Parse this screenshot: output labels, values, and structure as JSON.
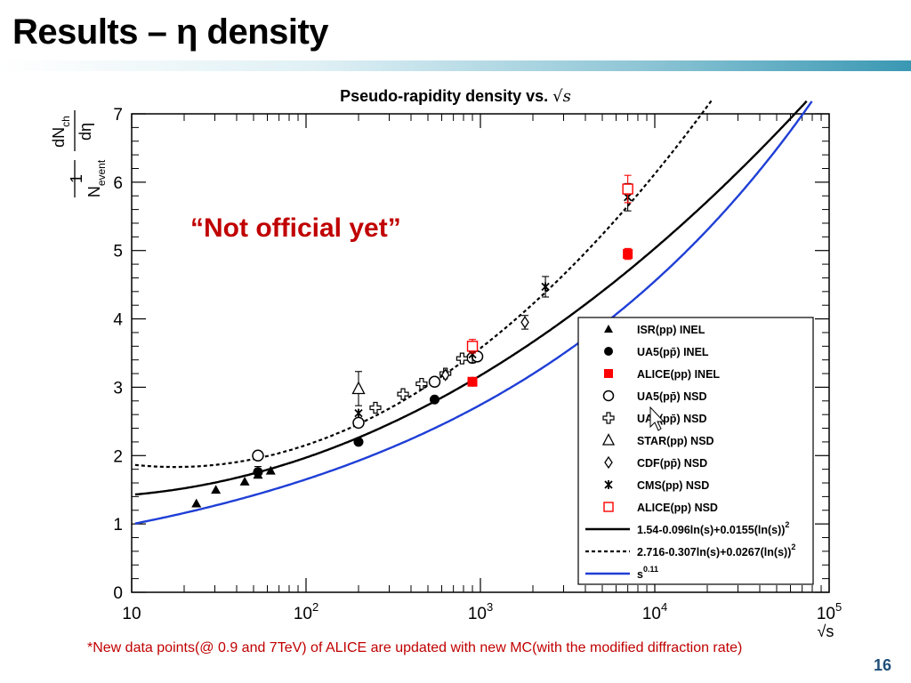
{
  "slide": {
    "title": "Results – η density",
    "stamp": "“Not official yet”",
    "footnote": "*New data points(@ 0.9 and 7TeV) of ALICE are updated with new MC(with the modified diffraction rate)",
    "page_number": "16"
  },
  "chart_data": {
    "type": "scatter",
    "title": "Pseudo-rapidity density vs.",
    "title_math": "√s",
    "x_scale": "log",
    "xlim": [
      10,
      100000
    ],
    "ylim": [
      0,
      7
    ],
    "xlabel": "√s",
    "ylabel_parts": {
      "num": "dN",
      "num_sub": "ch",
      "den_num": "dη",
      "one": "1",
      "den": "N",
      "den_sub": "event"
    },
    "x_ticks": [
      10,
      100,
      1000,
      10000,
      100000
    ],
    "x_tick_labels": [
      {
        "base": "10",
        "exp": ""
      },
      {
        "base": "10",
        "exp": "2"
      },
      {
        "base": "10",
        "exp": "3"
      },
      {
        "base": "10",
        "exp": "4"
      },
      {
        "base": "10",
        "exp": "5"
      }
    ],
    "y_ticks": [
      0,
      1,
      2,
      3,
      4,
      5,
      6,
      7
    ],
    "y_tick_labels": [
      "0",
      "1",
      "2",
      "3",
      "4",
      "5",
      "6",
      "7"
    ],
    "legend_position": "bottom-right",
    "series": [
      {
        "name": "ISR(pp) INEL",
        "marker": "triangle-filled",
        "color": "#000000",
        "points": [
          {
            "x": 23.5,
            "y": 1.3
          },
          {
            "x": 30.4,
            "y": 1.5
          },
          {
            "x": 44.5,
            "y": 1.62
          },
          {
            "x": 53,
            "y": 1.72
          },
          {
            "x": 62.7,
            "y": 1.78
          }
        ]
      },
      {
        "name": "UA5(pp̄) INEL",
        "marker": "circle-filled",
        "color": "#000000",
        "points": [
          {
            "x": 53,
            "y": 1.76,
            "err": 0.08
          },
          {
            "x": 200,
            "y": 2.2
          },
          {
            "x": 546,
            "y": 2.82
          },
          {
            "x": 900,
            "y": 3.08
          }
        ]
      },
      {
        "name": "ALICE(pp) INEL",
        "marker": "square-filled",
        "color": "#ff0000",
        "points": [
          {
            "x": 900,
            "y": 3.08
          },
          {
            "x": 7000,
            "y": 4.95,
            "err": 0.08
          }
        ]
      },
      {
        "name": "UA5(pp̄) NSD",
        "marker": "circle-open",
        "color": "#000000",
        "points": [
          {
            "x": 53,
            "y": 2.0
          },
          {
            "x": 200,
            "y": 2.48
          },
          {
            "x": 546,
            "y": 3.08
          },
          {
            "x": 900,
            "y": 3.43
          },
          {
            "x": 960,
            "y": 3.45
          }
        ]
      },
      {
        "name": "UA1(pp̄) NSD",
        "marker": "cross-open",
        "color": "#000000",
        "points": [
          {
            "x": 250,
            "y": 2.7
          },
          {
            "x": 360,
            "y": 2.9
          },
          {
            "x": 460,
            "y": 3.05
          },
          {
            "x": 630,
            "y": 3.2
          },
          {
            "x": 785,
            "y": 3.42
          }
        ]
      },
      {
        "name": "STAR(pp) NSD",
        "marker": "triangle-open",
        "color": "#000000",
        "points": [
          {
            "x": 200,
            "y": 2.98,
            "err": 0.25
          }
        ]
      },
      {
        "name": "CDF(pp̄) NSD",
        "marker": "diamond-open",
        "color": "#000000",
        "points": [
          {
            "x": 630,
            "y": 3.18
          },
          {
            "x": 1800,
            "y": 3.95,
            "err": 0.1
          }
        ]
      },
      {
        "name": "CMS(pp) NSD",
        "marker": "star",
        "color": "#000000",
        "points": [
          {
            "x": 200,
            "y": 2.62
          },
          {
            "x": 900,
            "y": 3.48,
            "err": 0.12
          },
          {
            "x": 2360,
            "y": 4.47,
            "err": 0.15
          },
          {
            "x": 7000,
            "y": 5.78,
            "err": 0.2
          }
        ]
      },
      {
        "name": "ALICE(pp) NSD",
        "marker": "square-open",
        "color": "#ff0000",
        "points": [
          {
            "x": 900,
            "y": 3.6,
            "err": 0.1
          },
          {
            "x": 7000,
            "y": 5.9,
            "err": 0.2
          }
        ]
      }
    ],
    "curves": [
      {
        "name": "1.54-0.096ln(s)+0.0155(ln(s))",
        "name_exp": "2",
        "style": "solid",
        "color": "#000000",
        "formula": {
          "a": 1.54,
          "b": -0.096,
          "c": 0.0155
        }
      },
      {
        "name": "2.716-0.307ln(s)+0.0267(ln(s))",
        "name_exp": "2",
        "style": "dotted",
        "color": "#000000",
        "formula": {
          "a": 2.716,
          "b": -0.307,
          "c": 0.0267
        }
      },
      {
        "name": "s",
        "name_exp": "0.11",
        "style": "solid",
        "color": "#1f3fd6",
        "formula": {
          "power": 0.11,
          "coef": 0.6
        }
      }
    ]
  }
}
